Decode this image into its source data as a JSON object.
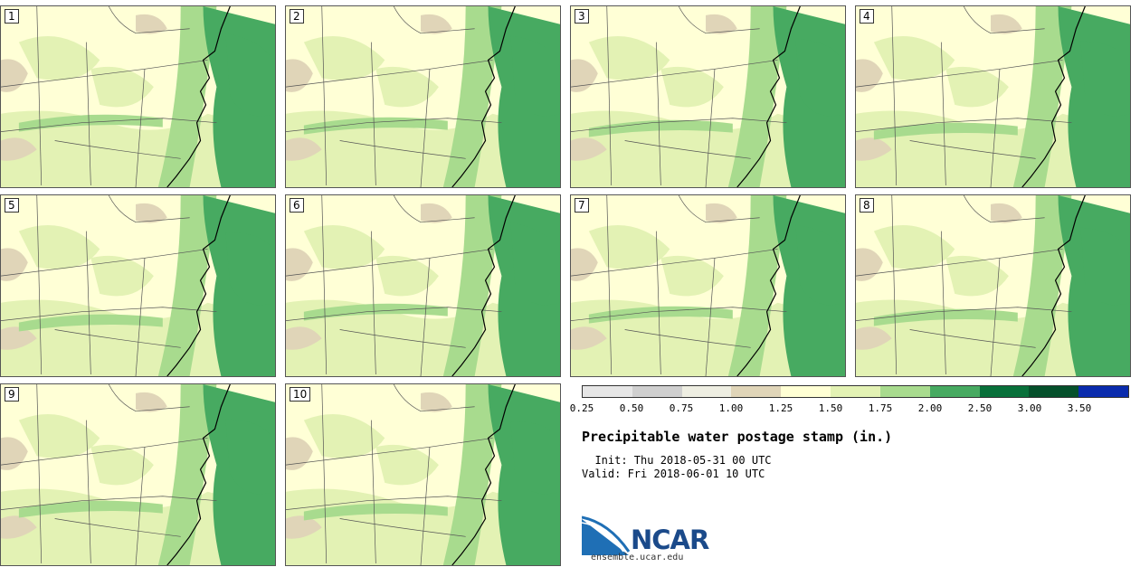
{
  "panels": [
    {
      "label": "1"
    },
    {
      "label": "2"
    },
    {
      "label": "3"
    },
    {
      "label": "4"
    },
    {
      "label": "5"
    },
    {
      "label": "6"
    },
    {
      "label": "7"
    },
    {
      "label": "8"
    },
    {
      "label": "9"
    },
    {
      "label": "10"
    }
  ],
  "colorbar": {
    "colors": [
      "#e6e6e6",
      "#cfcfcf",
      "#eeeee2",
      "#e0d5b8",
      "#ffffd4",
      "#e3f2b4",
      "#a8db8e",
      "#47aa61",
      "#08703a",
      "#05502b",
      "#0a2bad"
    ],
    "ticks": [
      "0.25",
      "0.50",
      "0.75",
      "1.00",
      "1.25",
      "1.50",
      "1.75",
      "2.00",
      "2.50",
      "3.00",
      "3.50"
    ]
  },
  "title": "Precipitable water postage stamp (in.)",
  "init": "  Init: Thu 2018-05-31 00 UTC",
  "valid": "Valid: Fri 2018-06-01 10 UTC",
  "logo": {
    "text": "NCAR",
    "url": "ensemble.ucar.edu"
  }
}
